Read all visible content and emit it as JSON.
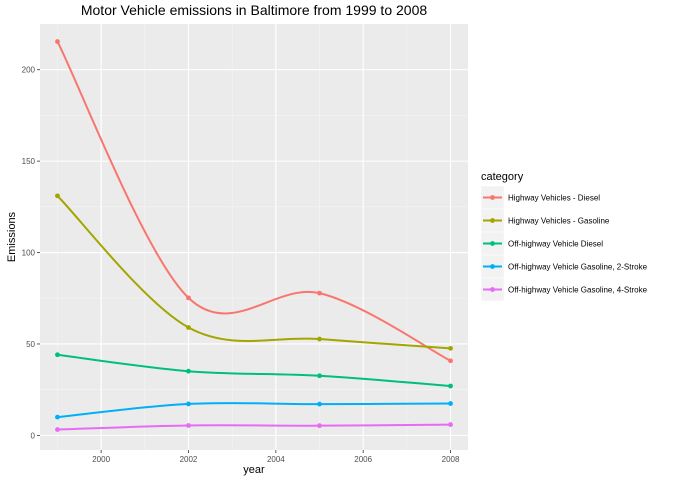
{
  "chart_data": {
    "type": "line",
    "title": "Motor Vehicle emissions in Baltimore from 1999 to 2008",
    "xlabel": "year",
    "ylabel": "Emissions",
    "x": [
      1999,
      2002,
      2005,
      2008
    ],
    "xlim": [
      1998.6,
      2008.4
    ],
    "ylim": [
      -8,
      225
    ],
    "xticks": [
      2000,
      2002,
      2004,
      2006,
      2008
    ],
    "xtick_labels": [
      "2000",
      "2002",
      "2004",
      "2006",
      "2008"
    ],
    "yticks": [
      0,
      50,
      100,
      150,
      200
    ],
    "ytick_labels": [
      "0",
      "50",
      "100",
      "150",
      "200"
    ],
    "grid": true,
    "legend_title": "category",
    "legend_position": "right",
    "series": [
      {
        "name": "Highway Vehicles - Diesel",
        "color": "#F8766D",
        "values": [
          215.4,
          75.2,
          77.8,
          40.8
        ]
      },
      {
        "name": "Highway Vehicles - Gasoline",
        "color": "#A3A500",
        "values": [
          131.0,
          59.0,
          52.7,
          47.6
        ]
      },
      {
        "name": "Off-highway Vehicle Diesel",
        "color": "#00BF7D",
        "values": [
          44.1,
          35.1,
          32.6,
          27.0
        ]
      },
      {
        "name": "Off-highway Vehicle Gasoline, 2-Stroke",
        "color": "#00B0F6",
        "values": [
          10.0,
          17.2,
          17.1,
          17.4
        ]
      },
      {
        "name": "Off-highway Vehicle Gasoline, 4-Stroke",
        "color": "#E76BF3",
        "values": [
          3.2,
          5.4,
          5.3,
          5.9
        ]
      }
    ]
  }
}
